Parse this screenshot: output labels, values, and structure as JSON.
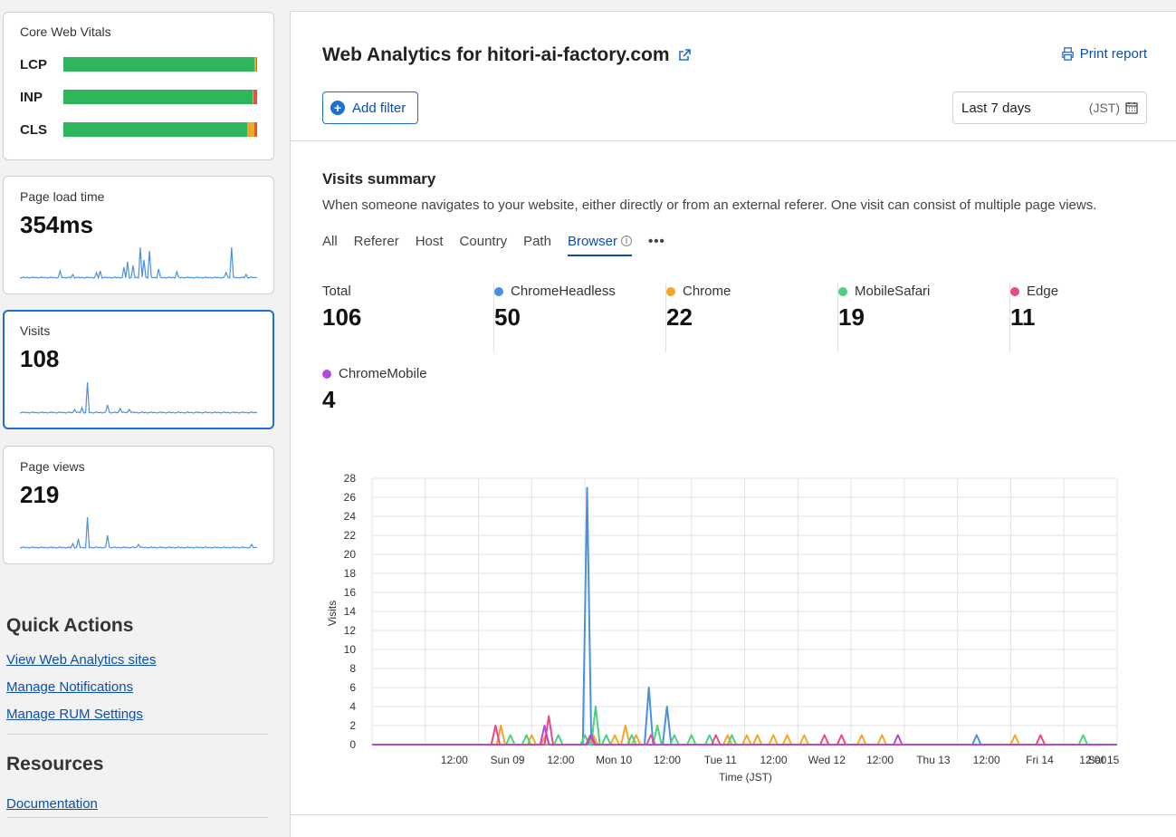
{
  "sidebar": {
    "cwv": {
      "title": "Core Web Vitals",
      "metrics": [
        {
          "name": "LCP",
          "good": 0.985,
          "needs": 0.01,
          "poor": 0.005
        },
        {
          "name": "INP",
          "good": 0.975,
          "needs": 0.005,
          "poor": 0.02
        },
        {
          "name": "CLS",
          "good": 0.95,
          "needs": 0.035,
          "poor": 0.015
        }
      ],
      "colors": {
        "good": "#2fb65c",
        "needs": "#f5a623",
        "poor": "#e5533d"
      }
    },
    "page_load": {
      "label": "Page load time",
      "value": "354ms"
    },
    "visits": {
      "label": "Visits",
      "value": "108"
    },
    "page_views": {
      "label": "Page views",
      "value": "219"
    },
    "quick_actions": {
      "title": "Quick Actions",
      "links": [
        "View Web Analytics sites",
        "Manage Notifications",
        "Manage RUM Settings"
      ]
    },
    "resources": {
      "title": "Resources",
      "links": [
        "Documentation"
      ]
    }
  },
  "header": {
    "title": "Web Analytics for hitori-ai-factory.com",
    "print_label": "Print report",
    "add_filter_label": "Add filter",
    "date_range": "Last 7 days",
    "timezone": "(JST)"
  },
  "summary": {
    "title": "Visits summary",
    "description": "When someone navigates to your website, either directly or from an external referer. One visit can consist of multiple page views.",
    "tabs": [
      "All",
      "Referer",
      "Host",
      "Country",
      "Path",
      "Browser"
    ],
    "active_tab": "Browser",
    "stats": [
      {
        "name": "Total",
        "value": "106",
        "color": ""
      },
      {
        "name": "ChromeHeadless",
        "value": "50",
        "color": "#4a90e2"
      },
      {
        "name": "Chrome",
        "value": "22",
        "color": "#f5a623"
      },
      {
        "name": "MobileSafari",
        "value": "19",
        "color": "#4cd07d"
      },
      {
        "name": "Edge",
        "value": "11",
        "color": "#e8488a"
      },
      {
        "name": "ChromeMobile",
        "value": "4",
        "color": "#b44bd6"
      }
    ]
  },
  "chart_data": {
    "type": "line",
    "xlabel": "Time (JST)",
    "ylabel": "Visits",
    "ylim": [
      0,
      28
    ],
    "yticks": [
      0,
      2,
      4,
      6,
      8,
      10,
      12,
      14,
      16,
      18,
      20,
      22,
      24,
      26,
      28
    ],
    "xlim": [
      0,
      7
    ],
    "xticks": [
      {
        "x": 0.9,
        "label": "12:00"
      },
      {
        "x": 1.4,
        "label": "Sun 09"
      },
      {
        "x": 1.9,
        "label": "12:00"
      },
      {
        "x": 2.4,
        "label": "Mon 10"
      },
      {
        "x": 2.9,
        "label": "12:00"
      },
      {
        "x": 3.4,
        "label": "Tue 11"
      },
      {
        "x": 3.9,
        "label": "12:00"
      },
      {
        "x": 4.4,
        "label": "Wed 12"
      },
      {
        "x": 4.9,
        "label": "12:00"
      },
      {
        "x": 5.4,
        "label": "Thu 13"
      },
      {
        "x": 5.9,
        "label": "12:00"
      },
      {
        "x": 6.4,
        "label": "Fri 14"
      },
      {
        "x": 6.9,
        "label": "12:00"
      },
      {
        "x": 7.0,
        "label": "Sat 15"
      }
    ],
    "series": [
      {
        "name": "ChromeHeadless",
        "color": "#4a90e2",
        "peaks": [
          [
            2.02,
            27
          ],
          [
            2.6,
            6
          ],
          [
            2.77,
            4
          ],
          [
            5.68,
            1
          ]
        ]
      },
      {
        "name": "Chrome",
        "color": "#f5a623",
        "peaks": [
          [
            1.21,
            2
          ],
          [
            1.5,
            1
          ],
          [
            1.63,
            1
          ],
          [
            2.08,
            1
          ],
          [
            2.28,
            1
          ],
          [
            2.38,
            2
          ],
          [
            2.48,
            1
          ],
          [
            3.34,
            1
          ],
          [
            3.52,
            1
          ],
          [
            3.62,
            1
          ],
          [
            3.77,
            1
          ],
          [
            3.9,
            1
          ],
          [
            4.06,
            1
          ],
          [
            4.6,
            1
          ],
          [
            4.79,
            1
          ],
          [
            6.04,
            1
          ]
        ]
      },
      {
        "name": "MobileSafari",
        "color": "#4cd07d",
        "peaks": [
          [
            1.3,
            1
          ],
          [
            1.45,
            1
          ],
          [
            1.75,
            1
          ],
          [
            2.0,
            1
          ],
          [
            2.1,
            4
          ],
          [
            2.2,
            1
          ],
          [
            2.44,
            1
          ],
          [
            2.68,
            2
          ],
          [
            2.84,
            1
          ],
          [
            3.0,
            1
          ],
          [
            3.17,
            1
          ],
          [
            3.38,
            1
          ],
          [
            6.68,
            1
          ]
        ]
      },
      {
        "name": "Edge",
        "color": "#e8488a",
        "peaks": [
          [
            1.16,
            2
          ],
          [
            1.66,
            3
          ],
          [
            2.05,
            1
          ],
          [
            2.62,
            1
          ],
          [
            3.23,
            1
          ],
          [
            4.25,
            1
          ],
          [
            4.41,
            1
          ],
          [
            6.28,
            1
          ]
        ]
      },
      {
        "name": "ChromeMobile",
        "color": "#b44bd6",
        "peaks": [
          [
            1.62,
            2
          ],
          [
            2.06,
            1
          ],
          [
            4.94,
            1
          ]
        ]
      }
    ]
  }
}
